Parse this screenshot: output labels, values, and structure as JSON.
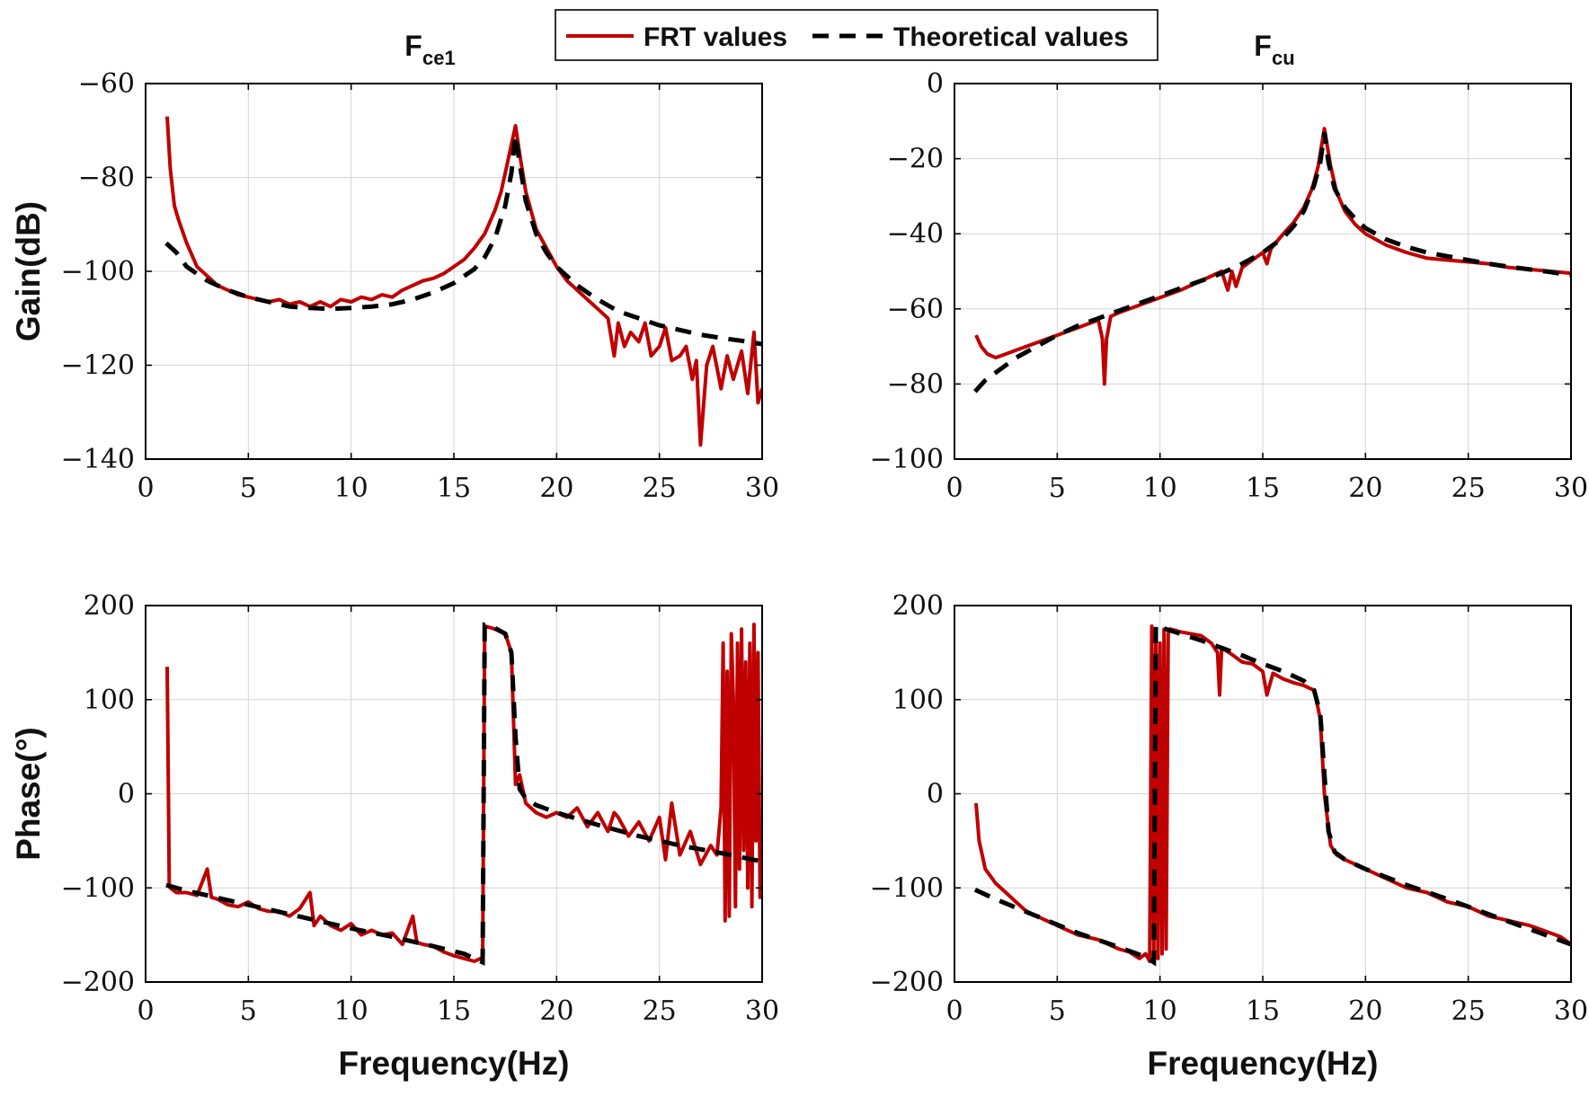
{
  "colors": {
    "frt": "#c00000",
    "theoretical": "#000000"
  },
  "legend": {
    "frt_label": "FRT values",
    "theo_label": "Theoretical values"
  },
  "chart_data": [
    {
      "id": "gain-fce1",
      "type": "line",
      "title_main": "F",
      "title_sub": "ce1",
      "xlabel": "",
      "ylabel": "Gain(dB)",
      "xlim": [
        0,
        30
      ],
      "ylim": [
        -140,
        -60
      ],
      "xticks": [
        0,
        5,
        10,
        15,
        20,
        25,
        30
      ],
      "yticks": [
        -140,
        -120,
        -100,
        -80,
        -60
      ],
      "xtick_labels": [
        "0",
        "5",
        "10",
        "15",
        "20",
        "25",
        "30"
      ],
      "ytick_labels": [
        "−140",
        "−120",
        "−100",
        "−80",
        "−60"
      ],
      "grid": true,
      "series": [
        {
          "name": "FRT values",
          "x": [
            1.05,
            1.2,
            1.4,
            1.6,
            2.0,
            2.5,
            3.0,
            3.5,
            4.0,
            4.5,
            5.0,
            5.5,
            6.0,
            6.5,
            7.0,
            7.5,
            8.0,
            8.5,
            9.0,
            9.5,
            10.0,
            10.5,
            11.0,
            11.5,
            12.0,
            12.5,
            13.0,
            13.5,
            14.0,
            14.5,
            15.0,
            15.5,
            16.0,
            16.5,
            17.0,
            17.3,
            17.6,
            17.8,
            18.0,
            18.2,
            18.5,
            19.0,
            19.5,
            20.0,
            20.5,
            21.0,
            21.5,
            22.0,
            22.5,
            22.8,
            23.0,
            23.3,
            23.6,
            24.0,
            24.3,
            24.6,
            25.0,
            25.3,
            25.6,
            26.0,
            26.3,
            26.6,
            26.8,
            27.0,
            27.3,
            27.6,
            28.0,
            28.3,
            28.6,
            29.0,
            29.3,
            29.6,
            29.8,
            30.0
          ],
          "y": [
            -67,
            -78,
            -86,
            -89,
            -94,
            -99,
            -101,
            -103,
            -104,
            -105,
            -105.5,
            -106,
            -106.5,
            -106,
            -107,
            -106.5,
            -107.5,
            -106.5,
            -107.5,
            -106,
            -106.5,
            -105.5,
            -106,
            -105,
            -105.5,
            -104,
            -103,
            -102,
            -101.5,
            -100.5,
            -99,
            -97.5,
            -95,
            -92,
            -87,
            -83,
            -77,
            -73,
            -69,
            -75,
            -83,
            -91,
            -95,
            -99,
            -102,
            -104,
            -106,
            -108,
            -110,
            -118,
            -111,
            -116,
            -113,
            -115,
            -111,
            -118,
            -116,
            -112,
            -119,
            -118,
            -116,
            -123,
            -119,
            -137,
            -120,
            -116,
            -125,
            -118,
            -123,
            -117,
            -126,
            -113,
            -128,
            -125
          ]
        },
        {
          "name": "Theoretical values",
          "x": [
            1.0,
            1.5,
            2.0,
            3.0,
            4.0,
            5.0,
            6.0,
            7.0,
            8.0,
            9.0,
            10.0,
            11.0,
            12.0,
            13.0,
            14.0,
            15.0,
            16.0,
            16.5,
            17.0,
            17.5,
            17.8,
            18.0,
            18.2,
            18.5,
            19.0,
            19.5,
            20.0,
            21.0,
            22.0,
            23.0,
            24.0,
            25.0,
            26.0,
            27.0,
            28.0,
            29.0,
            30.0
          ],
          "y": [
            -94,
            -96,
            -99,
            -102,
            -104,
            -105.5,
            -106.5,
            -107.5,
            -107.8,
            -108,
            -107.8,
            -107.5,
            -107,
            -106,
            -104.5,
            -102.5,
            -99.5,
            -97,
            -93,
            -86,
            -79,
            -71,
            -77,
            -85,
            -92,
            -96,
            -99,
            -103,
            -106,
            -108.5,
            -110,
            -111.5,
            -112.5,
            -113.5,
            -114.2,
            -114.8,
            -115.5
          ]
        }
      ]
    },
    {
      "id": "gain-fcu",
      "type": "line",
      "title_main": "F",
      "title_sub": "cu",
      "xlabel": "",
      "ylabel": "",
      "xlim": [
        0,
        30
      ],
      "ylim": [
        -100,
        0
      ],
      "xticks": [
        0,
        5,
        10,
        15,
        20,
        25,
        30
      ],
      "yticks": [
        -100,
        -80,
        -60,
        -40,
        -20,
        0
      ],
      "xtick_labels": [
        "0",
        "5",
        "10",
        "15",
        "20",
        "25",
        "30"
      ],
      "ytick_labels": [
        "−100",
        "−80",
        "−60",
        "−40",
        "−20",
        "0"
      ],
      "grid": true,
      "series": [
        {
          "name": "FRT values",
          "x": [
            1.05,
            1.3,
            1.6,
            2.0,
            2.5,
            3.0,
            3.5,
            4.0,
            5.0,
            6.0,
            7.0,
            7.2,
            7.3,
            7.4,
            7.6,
            8.0,
            9.0,
            10.0,
            11.0,
            12.0,
            13.0,
            13.3,
            13.5,
            13.7,
            14.0,
            15.0,
            15.2,
            15.4,
            16.0,
            16.5,
            17.0,
            17.4,
            17.7,
            18.0,
            18.3,
            18.6,
            19.0,
            19.5,
            20.0,
            21.0,
            22.0,
            23.0,
            24.0,
            25.0,
            26.0,
            27.0,
            28.0,
            29.0,
            30.0
          ],
          "y": [
            -67,
            -70,
            -72,
            -73,
            -72,
            -71,
            -70,
            -69,
            -67,
            -65,
            -63,
            -68,
            -80,
            -68,
            -62,
            -61,
            -59,
            -57,
            -55,
            -52.5,
            -50,
            -55,
            -50,
            -54,
            -49,
            -45,
            -48,
            -44,
            -40,
            -37,
            -33,
            -28,
            -22,
            -12,
            -22,
            -29,
            -34,
            -37.5,
            -40,
            -43,
            -45,
            -46.5,
            -47,
            -47.5,
            -48,
            -49,
            -49.5,
            -50,
            -50.5
          ]
        },
        {
          "name": "Theoretical values",
          "x": [
            1.0,
            1.5,
            2.0,
            3.0,
            4.0,
            5.0,
            6.0,
            7.0,
            8.0,
            9.0,
            10.0,
            11.0,
            12.0,
            13.0,
            14.0,
            15.0,
            16.0,
            16.5,
            17.0,
            17.5,
            17.8,
            18.0,
            18.2,
            18.5,
            19.0,
            19.5,
            20.0,
            21.0,
            22.0,
            23.0,
            24.0,
            25.0,
            26.0,
            27.0,
            28.0,
            29.0,
            30.0
          ],
          "y": [
            -82,
            -79,
            -77,
            -73,
            -70,
            -67,
            -64.5,
            -62.5,
            -60.5,
            -58.5,
            -56.5,
            -54.5,
            -52.5,
            -50.5,
            -48,
            -45,
            -41,
            -38,
            -34,
            -27,
            -21,
            -13,
            -21,
            -28,
            -33,
            -36,
            -38.5,
            -41.5,
            -43.5,
            -45,
            -46,
            -47,
            -48,
            -48.8,
            -49.5,
            -50.2,
            -51
          ]
        }
      ]
    },
    {
      "id": "phase-fce1",
      "type": "line",
      "title_main": "",
      "title_sub": "",
      "xlabel": "Frequency(Hz)",
      "ylabel": "Phase(°)",
      "xlim": [
        0,
        30
      ],
      "ylim": [
        -200,
        200
      ],
      "xticks": [
        0,
        5,
        10,
        15,
        20,
        25,
        30
      ],
      "yticks": [
        -200,
        -100,
        0,
        100,
        200
      ],
      "xtick_labels": [
        "0",
        "5",
        "10",
        "15",
        "20",
        "25",
        "30"
      ],
      "ytick_labels": [
        "−200",
        "−100",
        "0",
        "100",
        "200"
      ],
      "grid": true,
      "series": [
        {
          "name": "FRT values",
          "x": [
            1.05,
            1.1,
            1.15,
            1.2,
            1.5,
            2.0,
            2.5,
            3.0,
            3.2,
            3.5,
            4.0,
            4.5,
            5.0,
            5.5,
            6.0,
            6.5,
            7.0,
            7.5,
            8.0,
            8.2,
            8.5,
            9.0,
            9.5,
            10.0,
            10.5,
            11.0,
            11.5,
            12.0,
            12.5,
            13.0,
            13.2,
            13.5,
            14.0,
            14.5,
            15.0,
            15.5,
            16.0,
            16.3,
            16.4,
            16.5,
            16.7,
            17.0,
            17.5,
            17.8,
            18.0,
            18.2,
            18.5,
            19.0,
            19.5,
            20.0,
            20.5,
            21.0,
            21.5,
            22.0,
            22.5,
            22.8,
            23.0,
            23.5,
            24.0,
            24.5,
            25.0,
            25.3,
            25.6,
            26.0,
            26.5,
            27.0,
            27.5,
            27.8,
            28.0,
            28.1,
            28.2,
            28.3,
            28.4,
            28.5,
            28.6,
            28.7,
            28.8,
            28.9,
            29.0,
            29.1,
            29.2,
            29.3,
            29.4,
            29.5,
            29.6,
            29.7,
            29.8,
            29.9,
            30.0
          ],
          "y": [
            135,
            20,
            -95,
            -100,
            -105,
            -105,
            -108,
            -80,
            -110,
            -112,
            -118,
            -120,
            -115,
            -122,
            -125,
            -125,
            -130,
            -122,
            -105,
            -140,
            -130,
            -140,
            -145,
            -138,
            -150,
            -145,
            -150,
            -148,
            -160,
            -130,
            -158,
            -160,
            -162,
            -168,
            -172,
            -175,
            -178,
            -175,
            -178,
            178,
            177,
            175,
            170,
            150,
            10,
            20,
            -10,
            -20,
            -25,
            -20,
            -25,
            -15,
            -35,
            -20,
            -40,
            -20,
            -25,
            -45,
            -30,
            -50,
            -25,
            -70,
            -10,
            -65,
            -40,
            -75,
            -55,
            -65,
            -15,
            160,
            -135,
            130,
            -130,
            170,
            100,
            -120,
            160,
            -80,
            175,
            -60,
            140,
            -100,
            160,
            -120,
            180,
            -50,
            150,
            -110,
            -85
          ]
        },
        {
          "name": "Theoretical values",
          "x": [
            1.0,
            2.0,
            4.0,
            6.0,
            8.0,
            10.0,
            12.0,
            14.0,
            15.5,
            16.2,
            16.4,
            16.5,
            16.6,
            17.0,
            17.5,
            17.8,
            18.0,
            18.2,
            18.5,
            19.0,
            20.0,
            22.0,
            24.0,
            26.0,
            28.0,
            30.0
          ],
          "y": [
            -97,
            -103,
            -113,
            -123,
            -133,
            -143,
            -152,
            -162,
            -170,
            -177,
            -179,
            179,
            178,
            176,
            170,
            150,
            60,
            5,
            -5,
            -12,
            -20,
            -33,
            -45,
            -55,
            -63,
            -72
          ]
        }
      ]
    },
    {
      "id": "phase-fcu",
      "type": "line",
      "title_main": "",
      "title_sub": "",
      "xlabel": "Frequency(Hz)",
      "ylabel": "",
      "xlim": [
        0,
        30
      ],
      "ylim": [
        -200,
        200
      ],
      "xticks": [
        0,
        5,
        10,
        15,
        20,
        25,
        30
      ],
      "yticks": [
        -200,
        -100,
        0,
        100,
        200
      ],
      "xtick_labels": [
        "0",
        "5",
        "10",
        "15",
        "20",
        "25",
        "30"
      ],
      "ytick_labels": [
        "−200",
        "−100",
        "0",
        "100",
        "200"
      ],
      "grid": true,
      "series": [
        {
          "name": "FRT values",
          "x": [
            1.05,
            1.2,
            1.5,
            2.0,
            2.5,
            3.0,
            3.5,
            4.0,
            5.0,
            6.0,
            7.0,
            8.0,
            8.5,
            9.0,
            9.3,
            9.5,
            9.6,
            9.7,
            9.8,
            9.9,
            10.0,
            10.1,
            10.2,
            10.3,
            10.4,
            10.5,
            11.0,
            12.0,
            12.5,
            12.8,
            12.9,
            13.0,
            13.5,
            14.0,
            14.5,
            15.0,
            15.2,
            15.5,
            16.0,
            16.5,
            17.0,
            17.5,
            17.8,
            18.0,
            18.3,
            18.6,
            19.0,
            20.0,
            21.0,
            22.0,
            23.0,
            24.0,
            25.0,
            26.0,
            27.0,
            28.0,
            29.0,
            29.5,
            30.0
          ],
          "y": [
            -10,
            -50,
            -80,
            -95,
            -105,
            -115,
            -125,
            -130,
            -140,
            -150,
            -155,
            -165,
            -168,
            -175,
            -170,
            -178,
            178,
            -170,
            175,
            -175,
            160,
            -170,
            175,
            -165,
            170,
            175,
            172,
            168,
            160,
            150,
            105,
            155,
            148,
            140,
            138,
            130,
            105,
            128,
            122,
            118,
            115,
            110,
            80,
            0,
            -55,
            -65,
            -70,
            -80,
            -90,
            -100,
            -105,
            -115,
            -120,
            -130,
            -135,
            -140,
            -148,
            -152,
            -160
          ]
        },
        {
          "name": "Theoretical values",
          "x": [
            1.0,
            2.0,
            4.0,
            6.0,
            8.0,
            9.0,
            9.5,
            9.7,
            9.8,
            10.0,
            11.0,
            12.0,
            13.0,
            14.0,
            15.0,
            16.0,
            17.0,
            17.5,
            17.8,
            18.0,
            18.2,
            18.5,
            19.0,
            20.0,
            22.0,
            24.0,
            26.0,
            28.0,
            30.0
          ],
          "y": [
            -102,
            -112,
            -130,
            -148,
            -163,
            -171,
            -176,
            -179,
            179,
            177,
            170,
            163,
            155,
            147,
            138,
            130,
            120,
            110,
            85,
            20,
            -40,
            -62,
            -70,
            -80,
            -97,
            -112,
            -128,
            -144,
            -160
          ]
        }
      ]
    }
  ]
}
